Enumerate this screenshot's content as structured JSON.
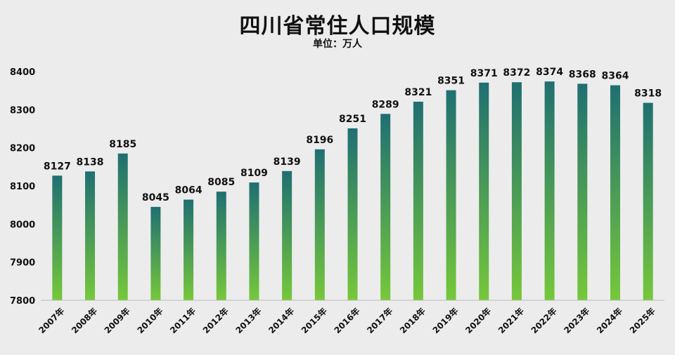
{
  "chart_data": {
    "type": "bar",
    "title": "四川省常住人口规模",
    "subtitle": "单位：万人",
    "categories": [
      "2007年",
      "2008年",
      "2009年",
      "2010年",
      "2011年",
      "2012年",
      "2013年",
      "2014年",
      "2015年",
      "2016年",
      "2017年",
      "2018年",
      "2019年",
      "2020年",
      "2021年",
      "2022年",
      "2023年",
      "2024年",
      "2025年"
    ],
    "values": [
      8127,
      8138,
      8185,
      8045,
      8064,
      8085,
      8109,
      8139,
      8196,
      8251,
      8289,
      8321,
      8351,
      8371,
      8372,
      8374,
      8368,
      8364,
      8318
    ],
    "ylim": [
      7800,
      8400
    ],
    "yticks": [
      7800,
      7900,
      8000,
      8100,
      8200,
      8300,
      8400
    ],
    "colors": {
      "bar_top": "#1f6f72",
      "bar_bottom": "#76c83a",
      "axis": "#bbbbbb"
    },
    "xlabel": "",
    "ylabel": "",
    "grid": false,
    "legend": "none"
  }
}
